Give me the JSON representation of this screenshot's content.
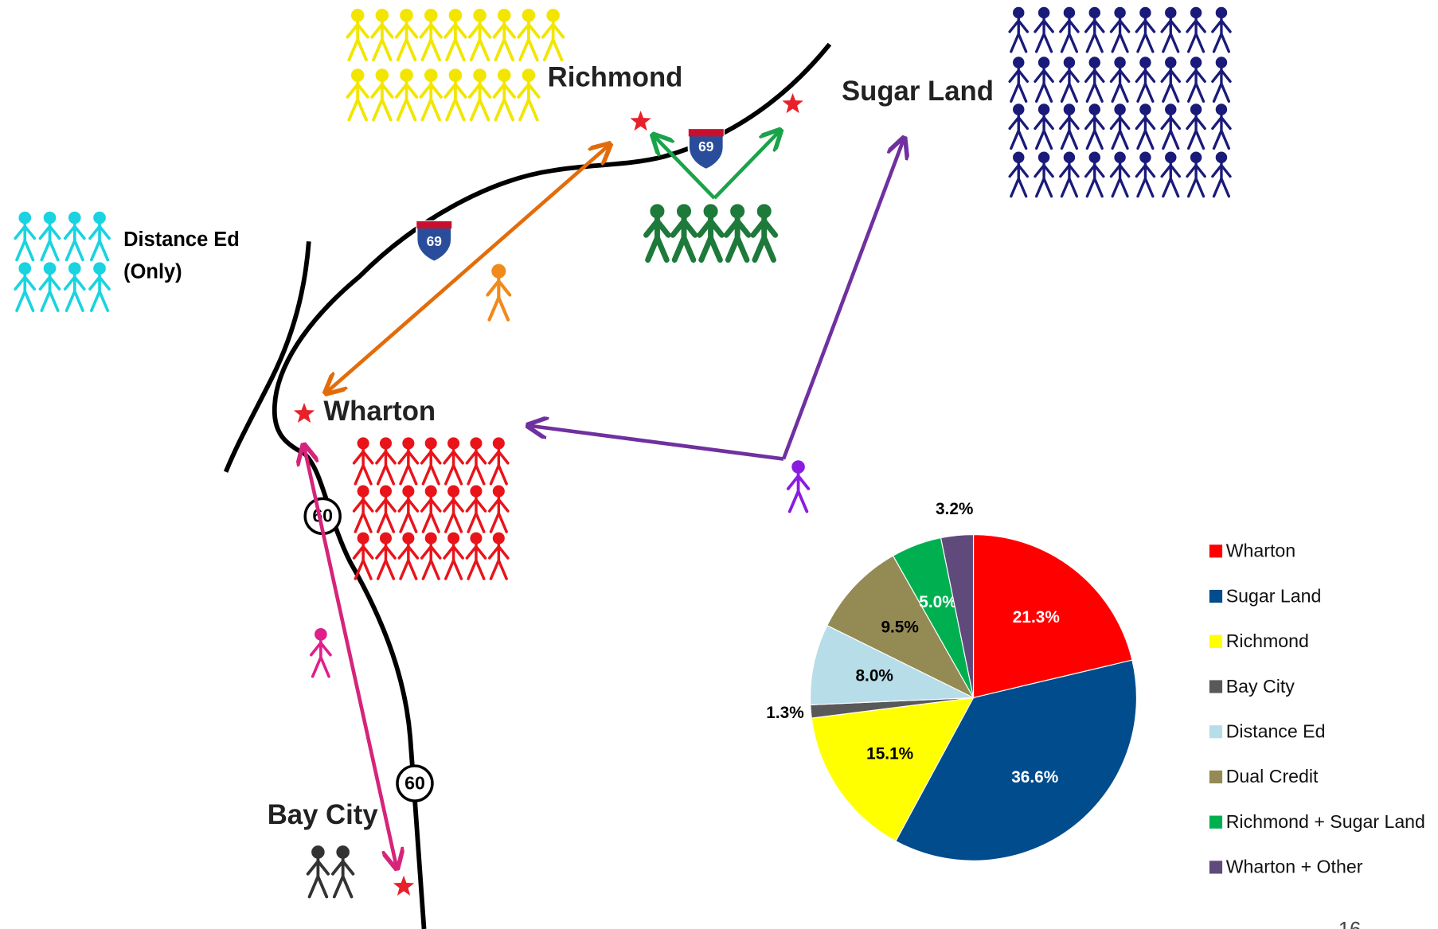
{
  "chart_data": {
    "type": "pie",
    "categories": [
      "Wharton",
      "Sugar Land",
      "Richmond",
      "Bay City",
      "Distance Ed",
      "Dual Credit",
      "Richmond + Sugar Land",
      "Wharton + Other"
    ],
    "values": [
      21.3,
      36.6,
      15.1,
      1.3,
      8.0,
      9.5,
      5.0,
      3.2
    ],
    "value_labels": [
      "21.3%",
      "36.6%",
      "15.1%",
      "1.3%",
      "8.0%",
      "9.5%",
      "5.0%",
      "3.2%"
    ],
    "colors": [
      "#ff0000",
      "#004c8c",
      "#ffff00",
      "#595959",
      "#b7dde8",
      "#948a54",
      "#00b050",
      "#604a7b"
    ],
    "legend": "right"
  },
  "map": {
    "cities": [
      "Richmond",
      "Sugar Land",
      "Wharton",
      "Bay City"
    ],
    "distance_ed": [
      "Distance Ed",
      "(Only)"
    ],
    "shields": [
      "69",
      "69",
      "60",
      "60"
    ]
  },
  "page_number": "16"
}
